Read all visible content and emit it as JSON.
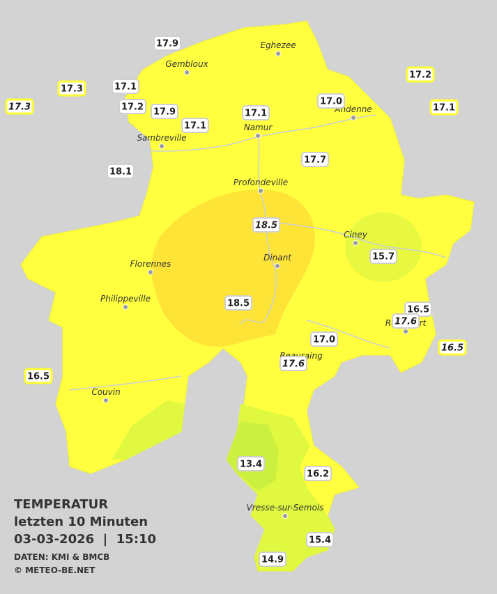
{
  "legend": {
    "title": "TEMPERATUR",
    "subtitle": "letzten 10 Minuten",
    "datetime": "03-03-2026  |  15:10",
    "source": "DATEN: KMI & BMCB",
    "copyright": "© METEO-BE.NET"
  },
  "cities": [
    "Eghezee",
    "Gembloux",
    "Andenne",
    "Namur",
    "Sambreville",
    "Profondeville",
    "Ciney",
    "Dinant",
    "Florennes",
    "Philippeville",
    "Rochefort",
    "Beauraing",
    "Couvin",
    "Vresse-sur-Semois"
  ],
  "stations": [
    "17.9",
    "17.3",
    "17.1",
    "17.3",
    "17.2",
    "17.9",
    "17.1",
    "17.1",
    "17.0",
    "17.2",
    "17.1",
    "18.1",
    "17.7",
    "18.5",
    "15.7",
    "18.5",
    "16.5",
    "17.6",
    "16.5",
    "17.0",
    "17.6",
    "16.5",
    "13.4",
    "16.2",
    "15.4",
    "14.9"
  ]
}
